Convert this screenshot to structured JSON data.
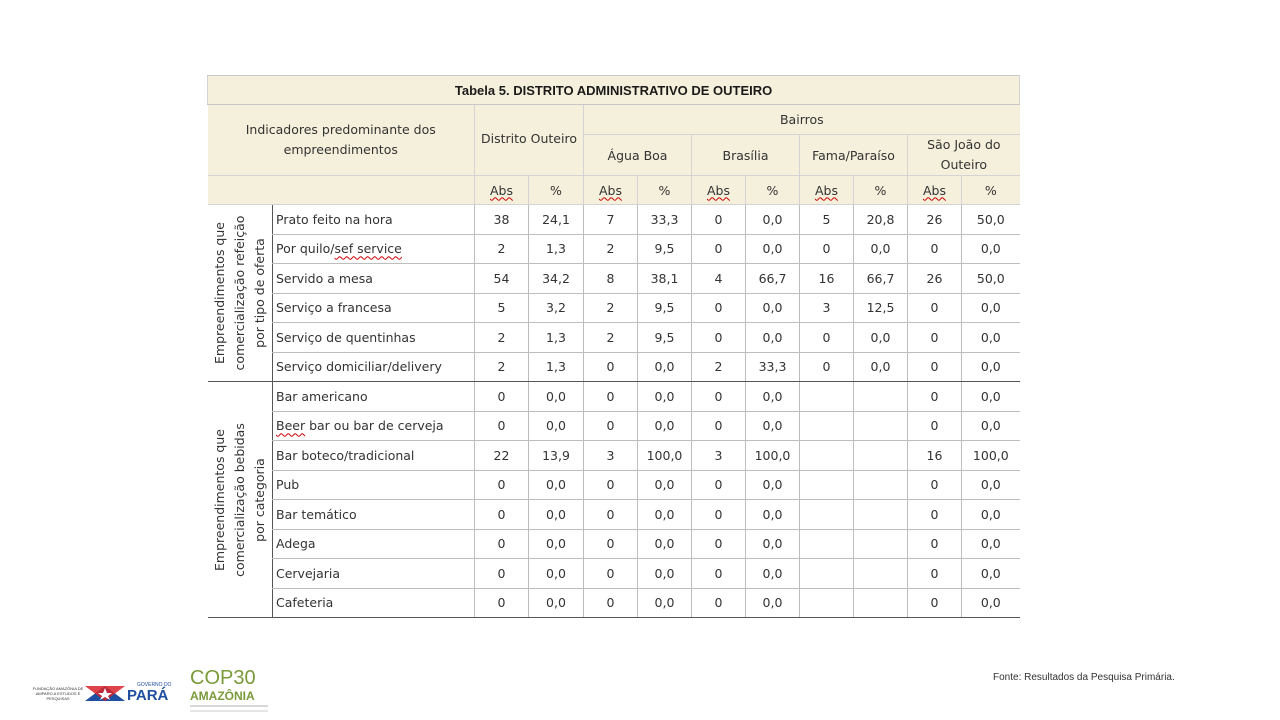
{
  "table": {
    "title": "Tabela 5. DISTRITO ADMINISTRATIVO DE OUTEIRO",
    "indicator_header": "Indicadores predominante dos empreendimentos",
    "district_header": "Distrito Outeiro",
    "bairros_header": "Bairros",
    "neighborhoods": [
      "Água Boa",
      "Brasília",
      "Fama/Paraíso",
      "São João do Outeiro"
    ],
    "col_abs": "Abs",
    "col_pct": "%",
    "groups": [
      {
        "label": "Empreendimentos que comercialização refeição por tipo de oferta",
        "rows": [
          {
            "label": "Prato feito na hora",
            "values": [
              "38",
              "24,1",
              "7",
              "33,3",
              "0",
              "0,0",
              "5",
              "20,8",
              "26",
              "50,0"
            ]
          },
          {
            "label": "Por quilo/sef service",
            "values": [
              "2",
              "1,3",
              "2",
              "9,5",
              "0",
              "0,0",
              "0",
              "0,0",
              "0",
              "0,0"
            ]
          },
          {
            "label": "Servido a mesa",
            "values": [
              "54",
              "34,2",
              "8",
              "38,1",
              "4",
              "66,7",
              "16",
              "66,7",
              "26",
              "50,0"
            ]
          },
          {
            "label": "Serviço a francesa",
            "values": [
              "5",
              "3,2",
              "2",
              "9,5",
              "0",
              "0,0",
              "3",
              "12,5",
              "0",
              "0,0"
            ]
          },
          {
            "label": "Serviço de quentinhas",
            "values": [
              "2",
              "1,3",
              "2",
              "9,5",
              "0",
              "0,0",
              "0",
              "0,0",
              "0",
              "0,0"
            ]
          },
          {
            "label": "Serviço domiciliar/delivery",
            "values": [
              "2",
              "1,3",
              "0",
              "0,0",
              "2",
              "33,3",
              "0",
              "0,0",
              "0",
              "0,0"
            ]
          }
        ]
      },
      {
        "label": "Empreendimentos que comercialização bebidas por categoria",
        "rows": [
          {
            "label": "Bar americano",
            "values": [
              "0",
              "0,0",
              "0",
              "0,0",
              "0",
              "0,0",
              "",
              "",
              "0",
              "0,0"
            ]
          },
          {
            "label": "Beer bar ou bar de cerveja",
            "values": [
              "0",
              "0,0",
              "0",
              "0,0",
              "0",
              "0,0",
              "",
              "",
              "0",
              "0,0"
            ]
          },
          {
            "label": "Bar boteco/tradicional",
            "values": [
              "22",
              "13,9",
              "3",
              "100,0",
              "3",
              "100,0",
              "",
              "",
              "16",
              "100,0"
            ]
          },
          {
            "label": "Pub",
            "values": [
              "0",
              "0,0",
              "0",
              "0,0",
              "0",
              "0,0",
              "",
              "",
              "0",
              "0,0"
            ]
          },
          {
            "label": "Bar temático",
            "values": [
              "0",
              "0,0",
              "0",
              "0,0",
              "0",
              "0,0",
              "",
              "",
              "0",
              "0,0"
            ]
          },
          {
            "label": "Adega",
            "values": [
              "0",
              "0,0",
              "0",
              "0,0",
              "0",
              "0,0",
              "",
              "",
              "0",
              "0,0"
            ]
          },
          {
            "label": "Cervejaria",
            "values": [
              "0",
              "0,0",
              "0",
              "0,0",
              "0",
              "0,0",
              "",
              "",
              "0",
              "0,0"
            ]
          },
          {
            "label": "Cafeteria",
            "values": [
              "0",
              "0,0",
              "0",
              "0,0",
              "0",
              "0,0",
              "",
              "",
              "0",
              "0,0"
            ]
          }
        ]
      }
    ]
  },
  "footer": {
    "source": "Fonte: Resultados da Pesquisa Primária.",
    "fapespa_line1": "FUNDAÇÃO AMAZÔNIA DE",
    "fapespa_line2": "AMPARO A ESTUDOS E",
    "fapespa_line3": "PESQUISAS",
    "governo_label": "GOVERNO DO",
    "para_label": "PARÁ",
    "cop_label": "COP30",
    "amazonia_label": "AMAZÔNIA"
  },
  "colors": {
    "header_bg": "#f5f0dc",
    "flag_blue": "#1f4fa0",
    "flag_red": "#d8232a",
    "cop_green": "#7a9a3a"
  }
}
